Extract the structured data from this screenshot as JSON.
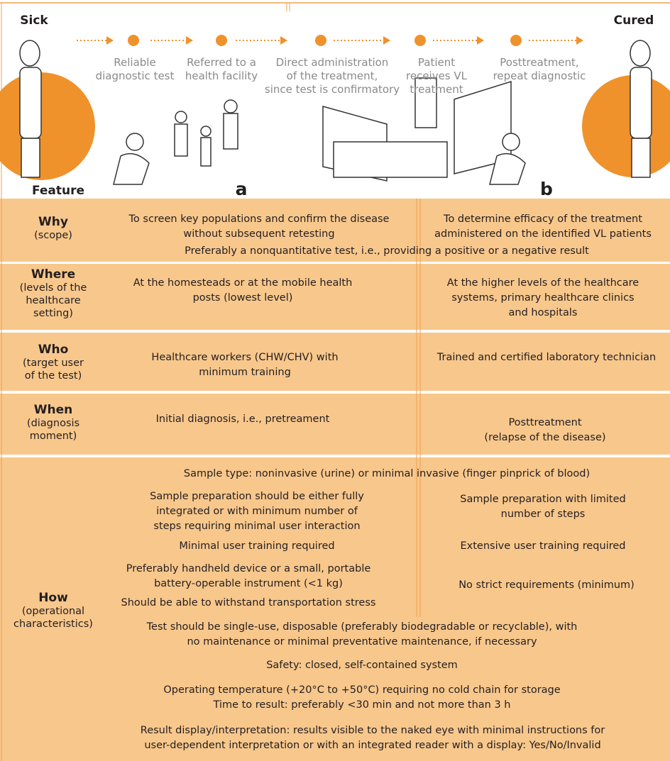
{
  "header": {
    "sick": "Sick",
    "cured": "Cured"
  },
  "steps": [
    "Reliable\ndiagnostic test",
    "Referred to a\nhealth facility",
    "Direct administration\nof the treatment,\nsince test is confirmatory",
    "Patient\nreceives VL\ntreatment",
    "Posttreatment,\nrepeat diagnostic"
  ],
  "columns": {
    "feature": "Feature",
    "a": "a",
    "b": "b"
  },
  "rows": [
    {
      "title": "Why",
      "sub": "(scope)",
      "a": "To screen key populations and confirm the disease\nwithout subsequent retesting",
      "b": "To determine efficacy of the treatment\nadministered on the identified VL patients",
      "shared": "Preferably a nonquantitative test, i.e., providing a positive or a negative result"
    },
    {
      "title": "Where",
      "sub": "(levels of the\nhealthcare\nsetting)",
      "a": "At the homesteads or at the mobile health\nposts (lowest level)",
      "b": "At the higher levels of the healthcare\nsystems, primary healthcare clinics\nand hospitals"
    },
    {
      "title": "Who",
      "sub": "(target user\nof the test)",
      "a": "Healthcare workers (CHW/CHV) with\nminimum training",
      "b": "Trained and certified laboratory technician"
    },
    {
      "title": "When",
      "sub": "(diagnosis\nmoment)",
      "a": "Initial diagnosis, i.e., pretreament",
      "b": "Posttreatment\n(relapse of the disease)"
    },
    {
      "title": "How",
      "sub": "(operational\ncharacteristics)",
      "items": [
        {
          "shared": "Sample type: noninvasive (urine) or minimal invasive (finger pinprick of blood)"
        },
        {
          "a": "Sample preparation should be either fully\nintegrated or with minimum number of\nsteps requiring minimal user interaction",
          "b": "Sample preparation with limited\nnumber of steps"
        },
        {
          "a": "Minimal user training required",
          "b": "Extensive user training required"
        },
        {
          "a": "Preferably handheld device or a small, portable\nbattery-operable instrument (<1 kg)",
          "b": "No strict requirements (minimum)"
        },
        {
          "a": "Should be able to withstand transportation stress"
        },
        {
          "shared": "Test should be single-use, disposable (preferably biodegradable or recyclable), with\nno maintenance or minimal preventative maintenance, if necessary"
        },
        {
          "shared": "Safety: closed, self-contained system"
        },
        {
          "shared": "Operating temperature (+20°C to +50°C) requiring no cold chain for storage\nTime to result: preferably <30 min and not more than 3 h"
        },
        {
          "shared": "Result display/interpretation: results visible to the naked eye with minimal instructions for\nuser-dependent interpretation or with an integrated reader with a display: Yes/No/Invalid"
        }
      ]
    }
  ]
}
